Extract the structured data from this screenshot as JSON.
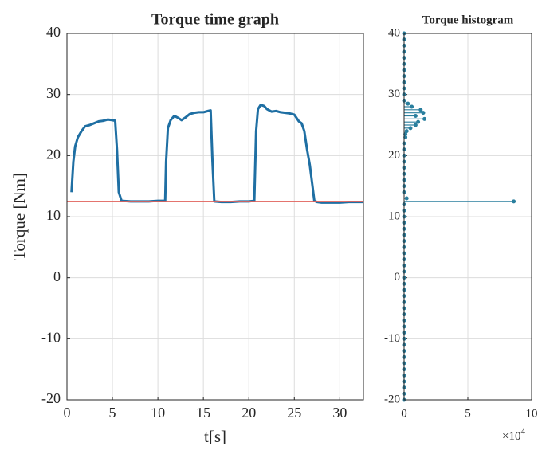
{
  "chart_data": [
    {
      "type": "line",
      "title": "Torque time graph",
      "x_label": "t[s]",
      "y_label": "Torque [Nm]",
      "xlim": [
        0,
        32.6
      ],
      "xticks": [
        0,
        5,
        10,
        15,
        20,
        25,
        30
      ],
      "ylim": [
        -20,
        40
      ],
      "yticks": [
        -20,
        -10,
        0,
        10,
        20,
        30,
        40
      ],
      "grid": true,
      "series": [
        {
          "color": "#1f6fa3",
          "x": [
            0.5,
            0.7,
            0.9,
            1.2,
            1.6,
            2,
            2.5,
            3,
            3.5,
            4,
            4.5,
            5,
            5.3,
            5.5,
            5.7,
            6,
            7,
            8,
            9,
            10,
            10.8,
            10.9,
            11.1,
            11.4,
            11.8,
            12.2,
            12.6,
            13,
            13.5,
            14,
            14.5,
            15,
            15.5,
            15.8,
            16,
            16.2,
            17,
            18,
            19,
            20,
            20.6,
            20.8,
            21,
            21.3,
            21.7,
            22,
            22.5,
            23,
            23.5,
            24,
            24.5,
            25,
            25.5,
            25.8,
            26.1,
            26.4,
            26.7,
            27,
            27.2,
            27.5,
            28,
            29,
            30,
            31,
            32.6
          ],
          "values": [
            14,
            19,
            21.5,
            23,
            24,
            24.8,
            25,
            25.3,
            25.6,
            25.7,
            25.9,
            25.8,
            25.7,
            21,
            14,
            12.6,
            12.5,
            12.5,
            12.5,
            12.6,
            12.6,
            19,
            24.5,
            25.8,
            26.5,
            26.2,
            25.8,
            26.2,
            26.8,
            27,
            27.1,
            27.1,
            27.3,
            27.4,
            19,
            12.5,
            12.4,
            12.4,
            12.5,
            12.5,
            12.6,
            24,
            27.6,
            28.3,
            28.1,
            27.6,
            27.2,
            27.3,
            27.1,
            27,
            26.9,
            26.7,
            25.6,
            25.3,
            24,
            21,
            18.5,
            15,
            12.6,
            12.4,
            12.3,
            12.3,
            12.3,
            12.4,
            12.4
          ]
        },
        {
          "color": "#e0605a",
          "x": [
            0,
            32.6
          ],
          "values": [
            12.5,
            12.5
          ]
        }
      ]
    },
    {
      "type": "stem",
      "title": "Torque histogram",
      "x_multiplier": "×10",
      "x_exponent": "4",
      "xlim": [
        0,
        10
      ],
      "xticks": [
        0,
        5,
        10
      ],
      "ylim": [
        -20,
        40
      ],
      "yticks": [
        -20,
        -10,
        0,
        10,
        20,
        30,
        40
      ],
      "grid": true,
      "color": "#2a7f9e",
      "y": [
        -20,
        -19,
        -18,
        -17,
        -16,
        -15,
        -14,
        -13,
        -12,
        -11,
        -10,
        -9,
        -8,
        -7,
        -6,
        -5,
        -4,
        -3,
        -2,
        -1,
        0,
        1,
        2,
        3,
        4,
        5,
        6,
        7,
        8,
        9,
        10,
        11,
        12,
        12.5,
        13,
        14,
        15,
        16,
        17,
        18,
        19,
        20,
        21,
        22,
        23,
        23.5,
        24,
        24.5,
        25,
        25.5,
        26,
        26.5,
        27,
        27.5,
        28,
        28.5,
        29,
        30,
        31,
        32,
        33,
        34,
        35,
        36,
        37,
        38,
        39,
        40
      ],
      "values": [
        0,
        0,
        0,
        0,
        0,
        0,
        0,
        0,
        0,
        0,
        0,
        0,
        0,
        0,
        0,
        0,
        0,
        0,
        0,
        0,
        0,
        0,
        0,
        0,
        0,
        0,
        0,
        0,
        0,
        0,
        0,
        0,
        0,
        8.6,
        0.2,
        0,
        0,
        0,
        0,
        0,
        0,
        0,
        0,
        0,
        0.1,
        0.1,
        0.2,
        0.5,
        0.9,
        1.1,
        1.6,
        0.9,
        1.5,
        1.3,
        0.6,
        0.3,
        0,
        0,
        0,
        0,
        0,
        0,
        0,
        0,
        0,
        0,
        0,
        0
      ]
    }
  ]
}
